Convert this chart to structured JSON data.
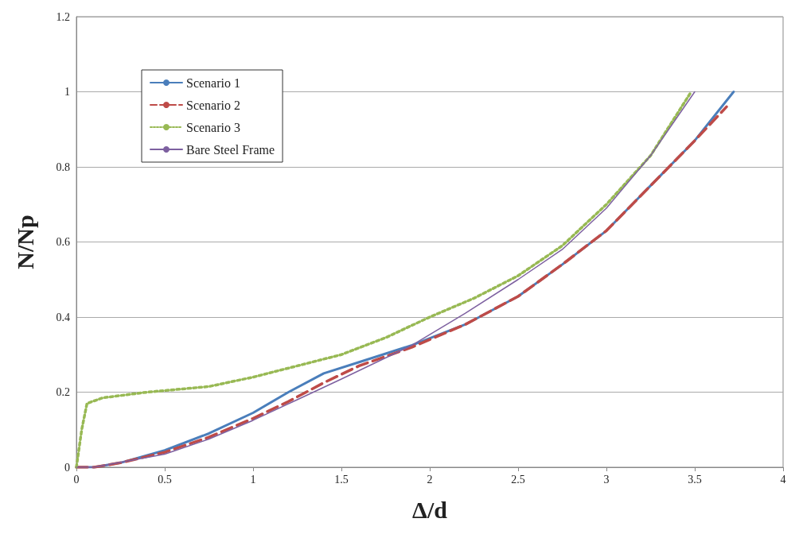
{
  "chart_data": {
    "type": "line",
    "xlabel": "Δ/d",
    "ylabel": "N/Np",
    "xlim": [
      0,
      4
    ],
    "xticks": [
      0,
      0.5,
      1,
      1.5,
      2,
      2.5,
      3,
      3.5,
      4
    ],
    "ylim": [
      0,
      1.2
    ],
    "yticks": [
      0,
      0.2,
      0.4,
      0.6,
      0.8,
      1,
      1.2
    ],
    "grid": "y",
    "legend": "top left",
    "marker": "none",
    "series": [
      {
        "name": "Scenario 1",
        "color": "#4a7ebb",
        "line_style": "solid",
        "x": [
          0,
          0.1,
          0.25,
          0.5,
          0.75,
          1,
          1.2,
          1.4,
          1.6,
          1.9,
          2.2,
          2.5,
          2.75,
          3,
          3.25,
          3.5,
          3.72
        ],
        "values": [
          0,
          0,
          0.012,
          0.045,
          0.09,
          0.145,
          0.2,
          0.25,
          0.28,
          0.325,
          0.38,
          0.455,
          0.54,
          0.63,
          0.75,
          0.87,
          1
        ]
      },
      {
        "name": "Scenario 2",
        "color": "#be4b48",
        "line_style": "dashed",
        "x": [
          0,
          0.1,
          0.25,
          0.5,
          0.75,
          1,
          1.2,
          1.4,
          1.6,
          1.9,
          2.2,
          2.5,
          2.75,
          3,
          3.25,
          3.5,
          3.68
        ],
        "values": [
          0,
          0,
          0.012,
          0.04,
          0.08,
          0.13,
          0.175,
          0.225,
          0.27,
          0.32,
          0.38,
          0.455,
          0.54,
          0.63,
          0.75,
          0.87,
          0.96
        ]
      },
      {
        "name": "Scenario 3",
        "color": "#98b954",
        "line_style": "dotted",
        "x": [
          0,
          0.03,
          0.06,
          0.15,
          0.4,
          0.75,
          1,
          1.25,
          1.5,
          1.75,
          2,
          2.25,
          2.5,
          2.75,
          3,
          3.25,
          3.48
        ],
        "values": [
          0,
          0.1,
          0.17,
          0.185,
          0.2,
          0.215,
          0.24,
          0.27,
          0.3,
          0.345,
          0.4,
          0.45,
          0.51,
          0.59,
          0.7,
          0.83,
          1
        ]
      },
      {
        "name": "Bare Steel Frame",
        "color": "#7d60a0",
        "line_style": "solid",
        "x": [
          0,
          0.1,
          0.5,
          0.75,
          1,
          1.25,
          1.5,
          1.9,
          2.2,
          2.5,
          2.75,
          3,
          3.25,
          3.5
        ],
        "values": [
          0,
          0,
          0.035,
          0.075,
          0.125,
          0.18,
          0.235,
          0.325,
          0.41,
          0.5,
          0.58,
          0.69,
          0.83,
          1
        ]
      }
    ]
  }
}
